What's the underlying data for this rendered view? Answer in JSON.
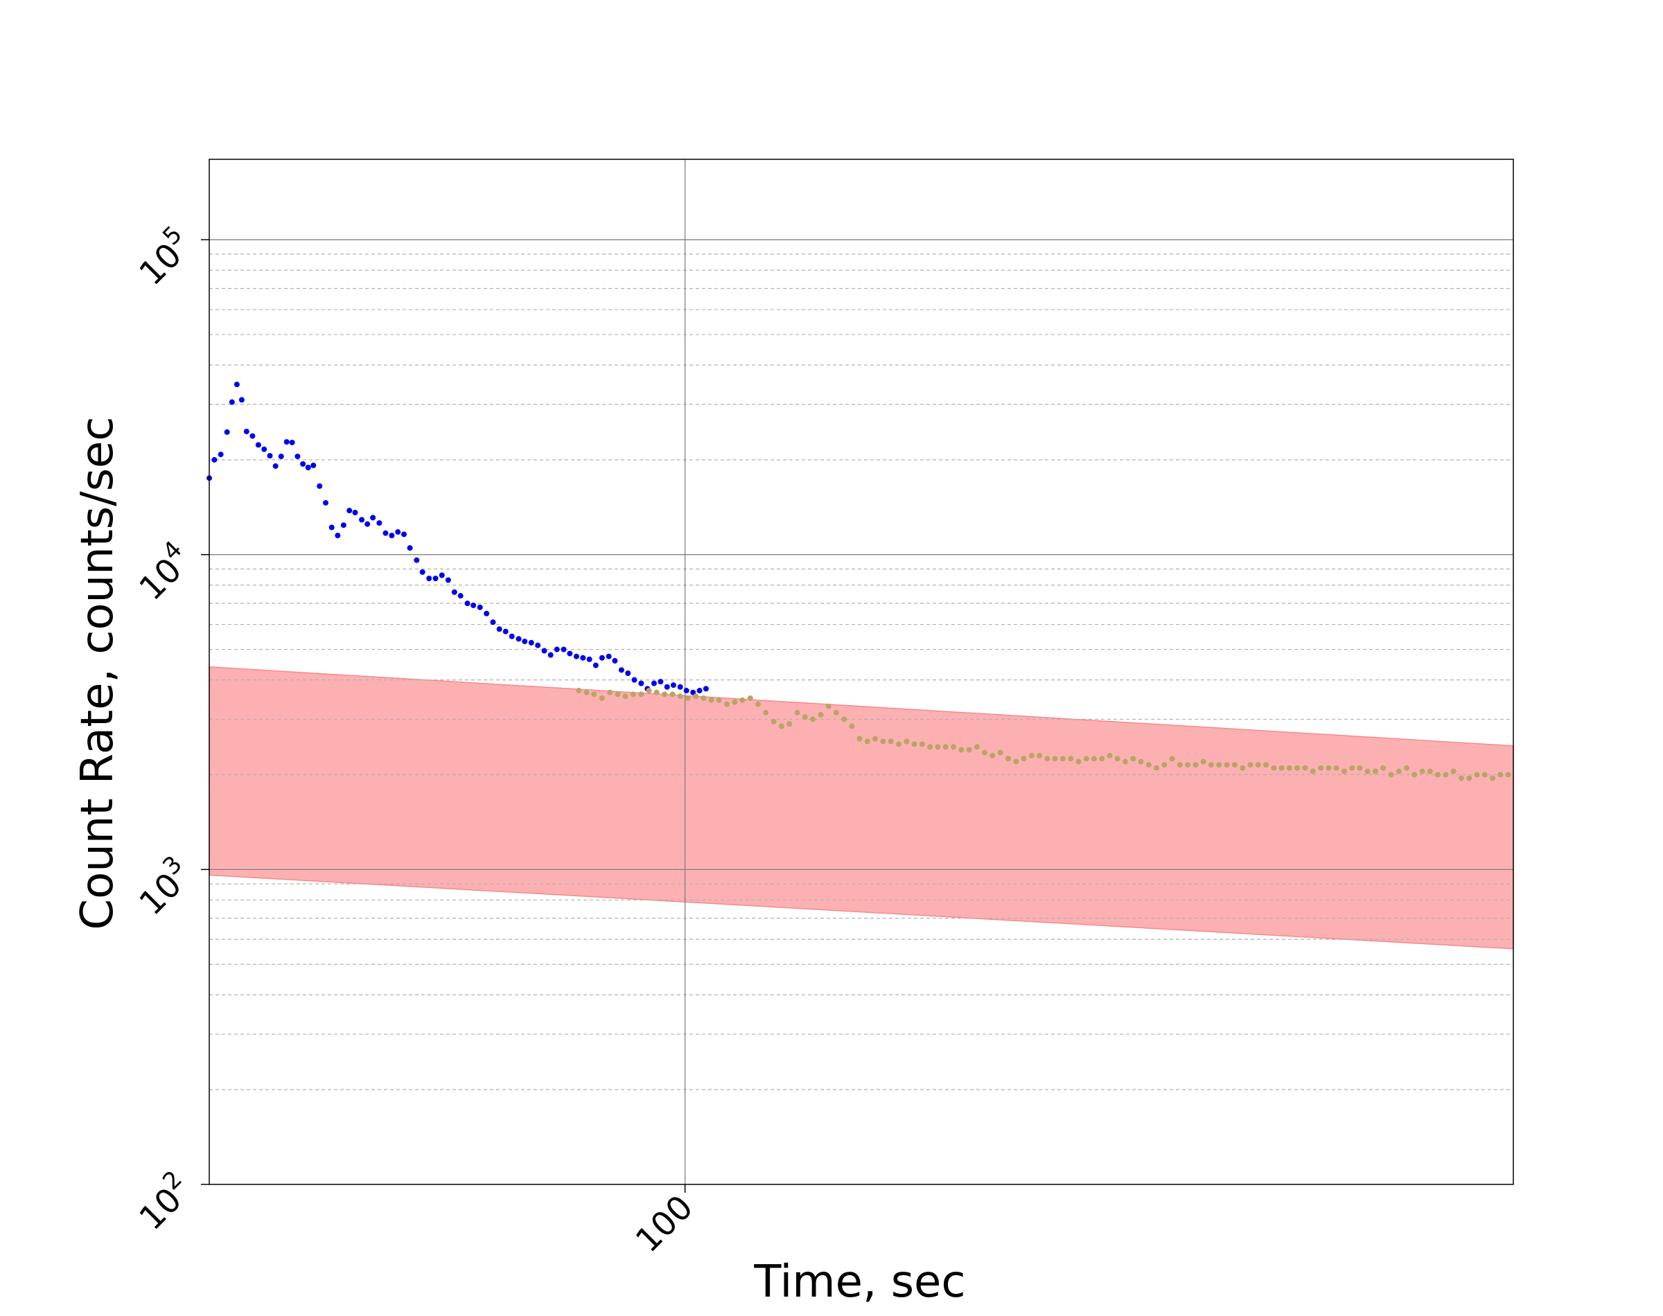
{
  "chart_data": {
    "type": "scatter",
    "title": "",
    "xlabel": "Time, sec",
    "ylabel": "Count Rate, counts/sec",
    "xscale": "log",
    "yscale": "log",
    "xlim": [
      36.8,
      570
    ],
    "ylim": [
      100,
      180000
    ],
    "x_ticks": [
      {
        "value": 100,
        "label": "100"
      }
    ],
    "y_ticks": [
      {
        "value": 100,
        "base": "10",
        "exp": "2"
      },
      {
        "value": 1000,
        "base": "10",
        "exp": "3"
      },
      {
        "value": 10000,
        "base": "10",
        "exp": "4"
      },
      {
        "value": 100000,
        "base": "10",
        "exp": "5"
      }
    ],
    "grid": {
      "major": true,
      "minor_y": true
    },
    "band": {
      "color": "#fdb0b2",
      "edge_color": "#f48a8c",
      "x": [
        36.8,
        570
      ],
      "upper": [
        4400,
        2470
      ],
      "lower": [
        960,
        560
      ]
    },
    "series": [
      {
        "color": "#0000ee",
        "points": [
          [
            36.8,
            17500
          ],
          [
            37.2,
            20000
          ],
          [
            37.7,
            20800
          ],
          [
            38.2,
            24500
          ],
          [
            38.6,
            30500
          ],
          [
            39.0,
            34700
          ],
          [
            39.4,
            31000
          ],
          [
            39.8,
            24600
          ],
          [
            40.3,
            23800
          ],
          [
            40.8,
            22300
          ],
          [
            41.3,
            21600
          ],
          [
            41.8,
            20600
          ],
          [
            42.3,
            19100
          ],
          [
            42.8,
            20500
          ],
          [
            43.3,
            22800
          ],
          [
            43.8,
            22700
          ],
          [
            44.3,
            20500
          ],
          [
            44.8,
            19400
          ],
          [
            45.3,
            18900
          ],
          [
            45.8,
            19200
          ],
          [
            46.4,
            16500
          ],
          [
            47.0,
            14600
          ],
          [
            47.6,
            12200
          ],
          [
            48.2,
            11500
          ],
          [
            48.8,
            12400
          ],
          [
            49.4,
            13800
          ],
          [
            50.0,
            13600
          ],
          [
            50.7,
            12900
          ],
          [
            51.3,
            12500
          ],
          [
            51.9,
            13100
          ],
          [
            52.6,
            12600
          ],
          [
            53.3,
            11700
          ],
          [
            54.0,
            11500
          ],
          [
            54.7,
            11800
          ],
          [
            55.4,
            11600
          ],
          [
            56.1,
            10500
          ],
          [
            56.9,
            9600
          ],
          [
            57.6,
            8800
          ],
          [
            58.4,
            8400
          ],
          [
            59.2,
            8400
          ],
          [
            60.0,
            8600
          ],
          [
            60.8,
            8300
          ],
          [
            61.6,
            7600
          ],
          [
            62.4,
            7400
          ],
          [
            63.3,
            7000
          ],
          [
            64.1,
            6900
          ],
          [
            65.0,
            6800
          ],
          [
            65.9,
            6500
          ],
          [
            66.8,
            6100
          ],
          [
            67.7,
            5800
          ],
          [
            68.6,
            5700
          ],
          [
            69.5,
            5500
          ],
          [
            70.5,
            5400
          ],
          [
            71.4,
            5300
          ],
          [
            72.4,
            5250
          ],
          [
            73.4,
            5150
          ],
          [
            74.4,
            4950
          ],
          [
            75.4,
            4800
          ],
          [
            76.4,
            5000
          ],
          [
            77.5,
            5000
          ],
          [
            78.5,
            4850
          ],
          [
            79.6,
            4750
          ],
          [
            80.7,
            4700
          ],
          [
            81.8,
            4650
          ],
          [
            82.9,
            4450
          ],
          [
            84.0,
            4700
          ],
          [
            85.2,
            4750
          ],
          [
            86.3,
            4600
          ],
          [
            87.5,
            4300
          ],
          [
            88.7,
            4200
          ],
          [
            89.9,
            4000
          ],
          [
            91.2,
            3900
          ],
          [
            92.4,
            3750
          ],
          [
            93.7,
            3900
          ],
          [
            95.0,
            3950
          ],
          [
            96.3,
            3800
          ],
          [
            97.6,
            3850
          ],
          [
            99.0,
            3800
          ],
          [
            100.3,
            3700
          ],
          [
            101.7,
            3650
          ],
          [
            103.1,
            3700
          ],
          [
            104.5,
            3750
          ]
        ]
      },
      {
        "color": "#b8a565",
        "points": [
          [
            80.0,
            3700
          ],
          [
            81.3,
            3650
          ],
          [
            82.6,
            3600
          ],
          [
            84.0,
            3500
          ],
          [
            85.4,
            3650
          ],
          [
            86.8,
            3600
          ],
          [
            88.2,
            3550
          ],
          [
            89.7,
            3600
          ],
          [
            91.2,
            3600
          ],
          [
            92.7,
            3700
          ],
          [
            94.2,
            3650
          ],
          [
            95.8,
            3600
          ],
          [
            97.4,
            3600
          ],
          [
            99.0,
            3550
          ],
          [
            100.6,
            3500
          ],
          [
            102.3,
            3550
          ],
          [
            104.0,
            3500
          ],
          [
            105.7,
            3450
          ],
          [
            107.4,
            3450
          ],
          [
            109.2,
            3350
          ],
          [
            111.0,
            3400
          ],
          [
            112.8,
            3450
          ],
          [
            114.7,
            3500
          ],
          [
            116.6,
            3350
          ],
          [
            118.5,
            3150
          ],
          [
            120.5,
            2950
          ],
          [
            122.5,
            2850
          ],
          [
            124.5,
            2900
          ],
          [
            126.6,
            3150
          ],
          [
            128.7,
            3050
          ],
          [
            130.8,
            3000
          ],
          [
            133.0,
            3100
          ],
          [
            135.2,
            3300
          ],
          [
            137.4,
            3150
          ],
          [
            139.7,
            3000
          ],
          [
            142.0,
            2850
          ],
          [
            144.3,
            2600
          ],
          [
            146.7,
            2550
          ],
          [
            149.1,
            2600
          ],
          [
            151.6,
            2550
          ],
          [
            154.1,
            2550
          ],
          [
            156.7,
            2500
          ],
          [
            159.3,
            2550
          ],
          [
            161.9,
            2500
          ],
          [
            164.6,
            2500
          ],
          [
            167.3,
            2450
          ],
          [
            170.1,
            2450
          ],
          [
            172.9,
            2450
          ],
          [
            175.8,
            2450
          ],
          [
            178.7,
            2400
          ],
          [
            181.7,
            2400
          ],
          [
            184.7,
            2450
          ],
          [
            187.7,
            2350
          ],
          [
            190.8,
            2300
          ],
          [
            194.0,
            2350
          ],
          [
            197.2,
            2250
          ],
          [
            200.5,
            2200
          ],
          [
            203.8,
            2250
          ],
          [
            207.2,
            2300
          ],
          [
            210.6,
            2300
          ],
          [
            214.1,
            2250
          ],
          [
            217.6,
            2250
          ],
          [
            221.2,
            2250
          ],
          [
            224.9,
            2250
          ],
          [
            228.6,
            2200
          ],
          [
            232.4,
            2250
          ],
          [
            236.2,
            2250
          ],
          [
            240.1,
            2250
          ],
          [
            244.1,
            2300
          ],
          [
            248.1,
            2250
          ],
          [
            252.2,
            2200
          ],
          [
            256.4,
            2250
          ],
          [
            260.6,
            2200
          ],
          [
            264.9,
            2150
          ],
          [
            269.3,
            2100
          ],
          [
            273.8,
            2150
          ],
          [
            278.3,
            2250
          ],
          [
            282.9,
            2150
          ],
          [
            287.6,
            2150
          ],
          [
            292.4,
            2150
          ],
          [
            297.2,
            2200
          ],
          [
            302.1,
            2150
          ],
          [
            307.1,
            2150
          ],
          [
            312.2,
            2150
          ],
          [
            317.4,
            2150
          ],
          [
            322.7,
            2100
          ],
          [
            328.0,
            2150
          ],
          [
            333.4,
            2150
          ],
          [
            339.0,
            2150
          ],
          [
            344.6,
            2100
          ],
          [
            350.3,
            2100
          ],
          [
            356.1,
            2100
          ],
          [
            362.0,
            2100
          ],
          [
            368.0,
            2100
          ],
          [
            374.1,
            2050
          ],
          [
            380.3,
            2100
          ],
          [
            386.6,
            2100
          ],
          [
            393.0,
            2100
          ],
          [
            399.5,
            2050
          ],
          [
            406.1,
            2100
          ],
          [
            412.8,
            2100
          ],
          [
            419.6,
            2050
          ],
          [
            426.6,
            2050
          ],
          [
            433.6,
            2100
          ],
          [
            440.8,
            2000
          ],
          [
            448.1,
            2050
          ],
          [
            455.5,
            2100
          ],
          [
            463.0,
            2000
          ],
          [
            470.7,
            2050
          ],
          [
            478.5,
            2050
          ],
          [
            486.4,
            2000
          ],
          [
            494.5,
            2000
          ],
          [
            502.7,
            2050
          ],
          [
            511.0,
            1950
          ],
          [
            519.5,
            1950
          ],
          [
            528.1,
            2000
          ],
          [
            536.8,
            2000
          ],
          [
            545.7,
            1950
          ],
          [
            554.7,
            2000
          ],
          [
            563.9,
            2000
          ]
        ]
      }
    ]
  }
}
